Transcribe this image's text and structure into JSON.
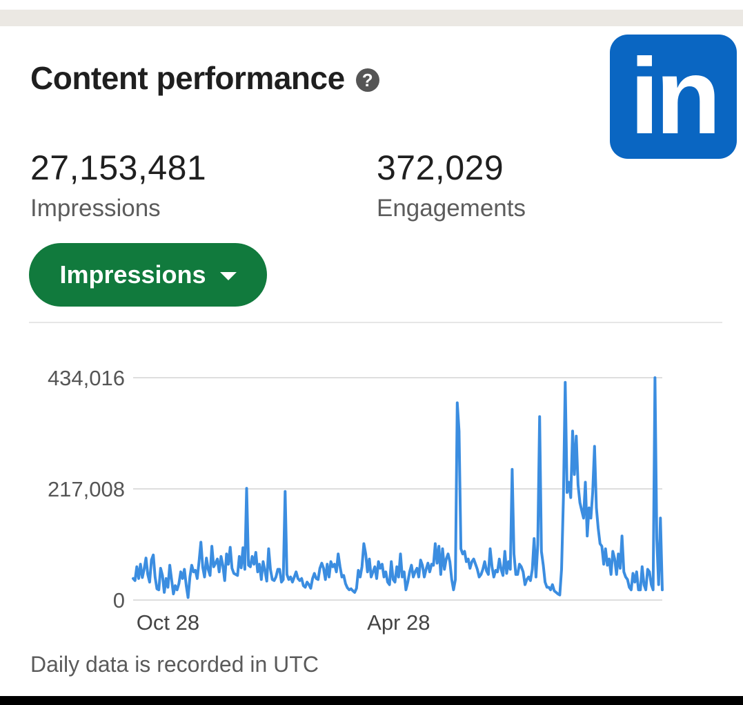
{
  "card": {
    "title": "Content performance",
    "help_icon_glyph": "?"
  },
  "logo": {
    "text": "in",
    "icon": "linkedin-logo",
    "color": "#0a66c2"
  },
  "metrics": [
    {
      "value": "27,153,481",
      "label": "Impressions"
    },
    {
      "value": "372,029",
      "label": "Engagements"
    }
  ],
  "metric_selector": {
    "selected": "Impressions",
    "color": "#117a3d"
  },
  "footnote": "Daily data is recorded in UTC",
  "chart_data": {
    "type": "line",
    "title": "",
    "xlabel": "",
    "ylabel": "",
    "y_ticks": [
      "434,016",
      "217,008",
      "0"
    ],
    "x_ticks": [
      "Oct 28",
      "Apr 28"
    ],
    "ylim": [
      0,
      434016
    ],
    "grid": true,
    "line_color": "#3b8de0",
    "series": [
      {
        "values": [
          42000,
          38000,
          65000,
          42000,
          70000,
          44000,
          60000,
          82000,
          50000,
          35000,
          78000,
          88000,
          45000,
          22000,
          20000,
          62000,
          48000,
          15000,
          42000,
          25000,
          68000,
          40000,
          12000,
          28000,
          20000,
          32000,
          55000,
          42000,
          60000,
          28000,
          5000,
          45000,
          68000,
          55000,
          58000,
          42000,
          75000,
          113000,
          64000,
          45000,
          82000,
          60000,
          48000,
          105000,
          65000,
          72000,
          80000,
          55000,
          85000,
          68000,
          38000,
          90000,
          70000,
          103000,
          62000,
          52000,
          50000,
          48000,
          85000,
          63000,
          102000,
          60000,
          218000,
          68000,
          65000,
          85000,
          70000,
          93000,
          55000,
          70000,
          40000,
          75000,
          57000,
          37000,
          100000,
          60000,
          40000,
          38000,
          45000,
          60000,
          60000,
          35000,
          40000,
          212000,
          50000,
          40000,
          45000,
          35000,
          45000,
          55000,
          42000,
          38000,
          42000,
          28000,
          25000,
          35000,
          30000,
          23000,
          42000,
          52000,
          42000,
          40000,
          62000,
          72000,
          62000,
          40000,
          70000,
          45000,
          75000,
          65000,
          70000,
          55000,
          90000,
          65000,
          45000,
          48000,
          32000,
          24000,
          20000,
          22000,
          18000,
          15000,
          23000,
          58000,
          45000,
          65000,
          110000,
          90000,
          55000,
          80000,
          45000,
          55000,
          65000,
          42000,
          75000,
          62000,
          70000,
          45000,
          55000,
          35000,
          30000,
          75000,
          40000,
          35000,
          65000,
          45000,
          90000,
          45000,
          55000,
          20000,
          35000,
          55000,
          68000,
          45000,
          55000,
          62000,
          45000,
          78000,
          68000,
          45000,
          60000,
          72000,
          55000,
          70000,
          68000,
          110000,
          72000,
          105000,
          50000,
          100000,
          60000,
          80000,
          90000,
          75000,
          40000,
          20000,
          40000,
          385000,
          330000,
          100000,
          90000,
          95000,
          75000,
          80000,
          62000,
          75000,
          80000,
          70000,
          60000,
          45000,
          50000,
          60000,
          75000,
          57000,
          50000,
          100000,
          65000,
          45000,
          58000,
          55000,
          80000,
          60000,
          48000,
          95000,
          52000,
          75000,
          60000,
          255000,
          90000,
          50000,
          50000,
          70000,
          65000,
          55000,
          30000,
          40000,
          45000,
          38000,
          60000,
          120000,
          45000,
          108000,
          358000,
          95000,
          68000,
          35000,
          25000,
          25000,
          20000,
          30000,
          18000,
          15000,
          12000,
          10000,
          60000,
          200000,
          425000,
          210000,
          230000,
          200000,
          330000,
          245000,
          320000,
          225000,
          190000,
          175000,
          160000,
          230000,
          125000,
          180000,
          160000,
          210000,
          300000,
          180000,
          140000,
          110000,
          105000,
          70000,
          100000,
          68000,
          80000,
          50000,
          95000,
          80000,
          50000,
          90000,
          62000,
          125000,
          55000,
          45000,
          40000,
          25000,
          20000,
          52000,
          35000,
          55000,
          20000,
          20000,
          65000,
          30000,
          20000,
          60000,
          55000,
          30000,
          20000,
          434000,
          120000,
          30000,
          160000,
          20000
        ]
      }
    ]
  }
}
